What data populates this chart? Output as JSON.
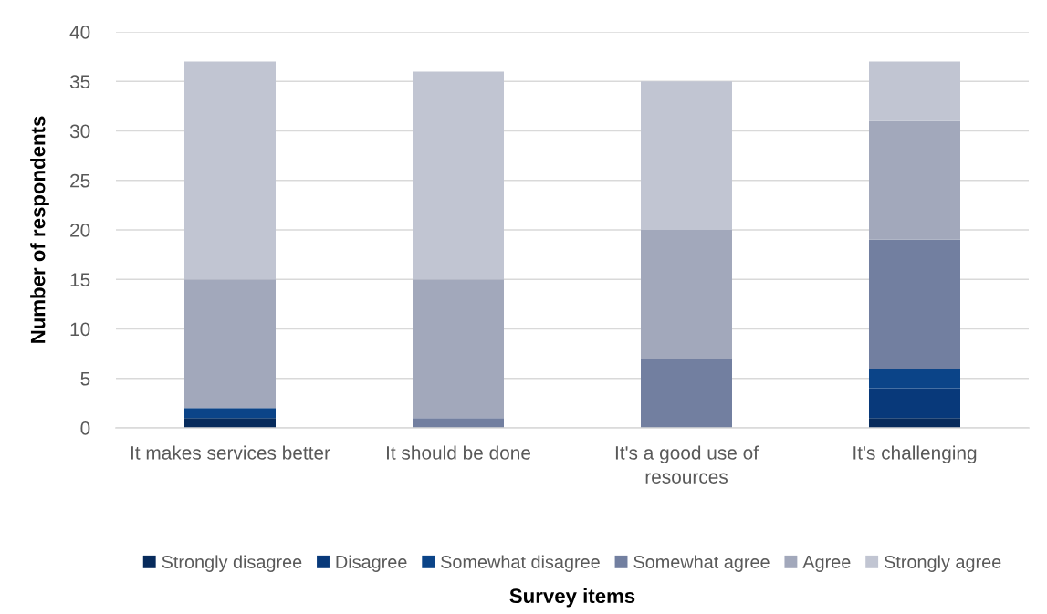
{
  "chart_data": {
    "type": "bar",
    "stacked": true,
    "ylabel": "Number of respondents",
    "categories": [
      "It makes services better",
      "It should be done",
      "It's a good use of\nresources",
      "It's challenging"
    ],
    "series": [
      {
        "name": "Strongly disagree",
        "color": "#072b5c",
        "values": [
          1,
          0,
          0,
          1
        ]
      },
      {
        "name": "Disagree",
        "color": "#08397a",
        "values": [
          0,
          0,
          0,
          3
        ]
      },
      {
        "name": "Somewhat disagree",
        "color": "#0b4488",
        "values": [
          1,
          0,
          0,
          2
        ]
      },
      {
        "name": "Somewhat agree",
        "color": "#727fa0",
        "values": [
          0,
          1,
          7,
          13
        ]
      },
      {
        "name": "Agree",
        "color": "#a2a8bb",
        "values": [
          13,
          14,
          13,
          12
        ]
      },
      {
        "name": "Strongly agree",
        "color": "#c1c5d2",
        "values": [
          22,
          21,
          15,
          6
        ]
      }
    ],
    "ylim": [
      0,
      40
    ],
    "yticks": [
      0,
      5,
      10,
      15,
      20,
      25,
      30,
      35,
      40
    ],
    "grid": "y",
    "legend": "bottom",
    "annotations": [
      "Survey items"
    ]
  }
}
